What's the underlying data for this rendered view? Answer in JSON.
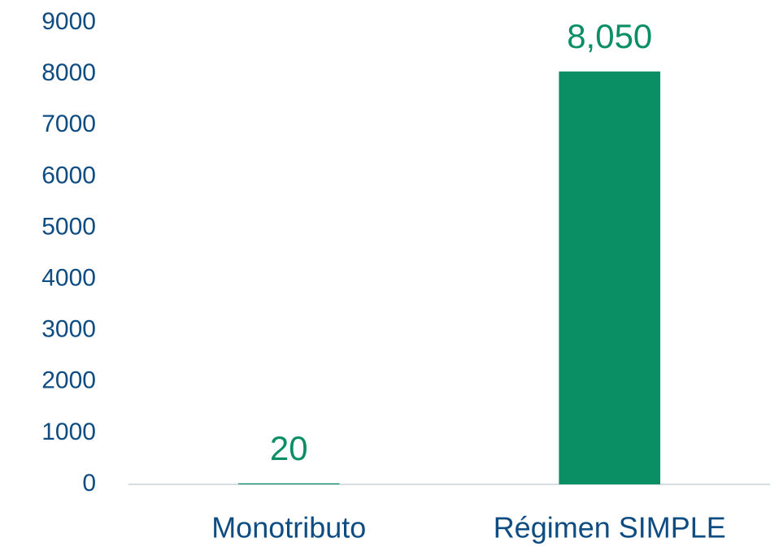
{
  "chart_data": {
    "type": "bar",
    "categories": [
      "Monotributo",
      "Régimen SIMPLE"
    ],
    "values": [
      20,
      8050
    ],
    "value_labels": [
      "20",
      "8,050"
    ],
    "color": "#0a8f65",
    "ylim": [
      0,
      9000
    ],
    "yticks": [
      0,
      1000,
      2000,
      3000,
      4000,
      5000,
      6000,
      7000,
      8000,
      9000
    ],
    "grid": false
  }
}
